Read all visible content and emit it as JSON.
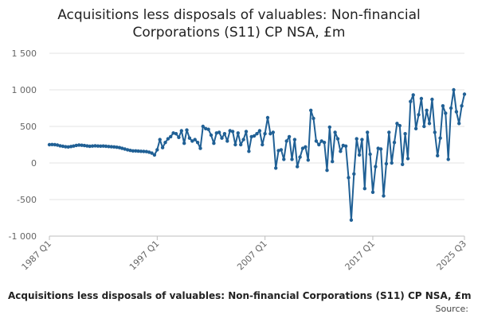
{
  "chart_data": {
    "type": "line",
    "title": "Acquisitions less disposals of valuables: Non-financial Corporations (S11) CP NSA, £m",
    "xlabel": "",
    "ylabel": "",
    "ylim": [
      -1000,
      1500
    ],
    "yticks": [
      1500,
      1000,
      500,
      0,
      -500,
      -1000
    ],
    "ytick_labels": [
      "1 500",
      "1 000",
      "500",
      "0",
      "-500",
      "-1 000"
    ],
    "xtick_labels": [
      "1987 Q1",
      "1997 Q1",
      "2007 Q1",
      "2017 Q1",
      "2025 Q3"
    ],
    "xtick_indices": [
      0,
      40,
      80,
      120,
      154
    ],
    "grid": true,
    "legend": "bottom",
    "color": "#206095",
    "series": [
      {
        "name": "Acquisitions less disposals of valuables: Non-financial Corporations (S11) CP NSA, £m",
        "start": "1987 Q1",
        "values": [
          250,
          252,
          250,
          245,
          235,
          228,
          222,
          220,
          225,
          232,
          240,
          245,
          242,
          238,
          233,
          228,
          232,
          235,
          232,
          230,
          232,
          228,
          225,
          222,
          220,
          215,
          210,
          200,
          190,
          180,
          172,
          165,
          165,
          162,
          160,
          158,
          155,
          148,
          135,
          110,
          180,
          320,
          210,
          280,
          330,
          360,
          410,
          400,
          350,
          440,
          270,
          450,
          340,
          300,
          320,
          280,
          200,
          500,
          470,
          460,
          380,
          270,
          410,
          420,
          340,
          400,
          300,
          440,
          430,
          250,
          410,
          250,
          320,
          430,
          160,
          360,
          370,
          400,
          440,
          250,
          400,
          620,
          400,
          420,
          -70,
          170,
          180,
          50,
          300,
          360,
          50,
          320,
          -50,
          80,
          200,
          220,
          40,
          720,
          610,
          300,
          250,
          300,
          280,
          -100,
          490,
          20,
          420,
          330,
          160,
          240,
          230,
          -200,
          -780,
          -150,
          330,
          110,
          320,
          -350,
          420,
          120,
          -400,
          -50,
          200,
          190,
          -450,
          -10,
          420,
          0,
          280,
          540,
          510,
          -20,
          400,
          60,
          840,
          930,
          470,
          660,
          880,
          500,
          720,
          540,
          870,
          420,
          100,
          340,
          780,
          680,
          50,
          750,
          1000,
          700,
          540,
          780,
          940
        ]
      }
    ]
  },
  "footer": {
    "source_label": "Source:"
  }
}
